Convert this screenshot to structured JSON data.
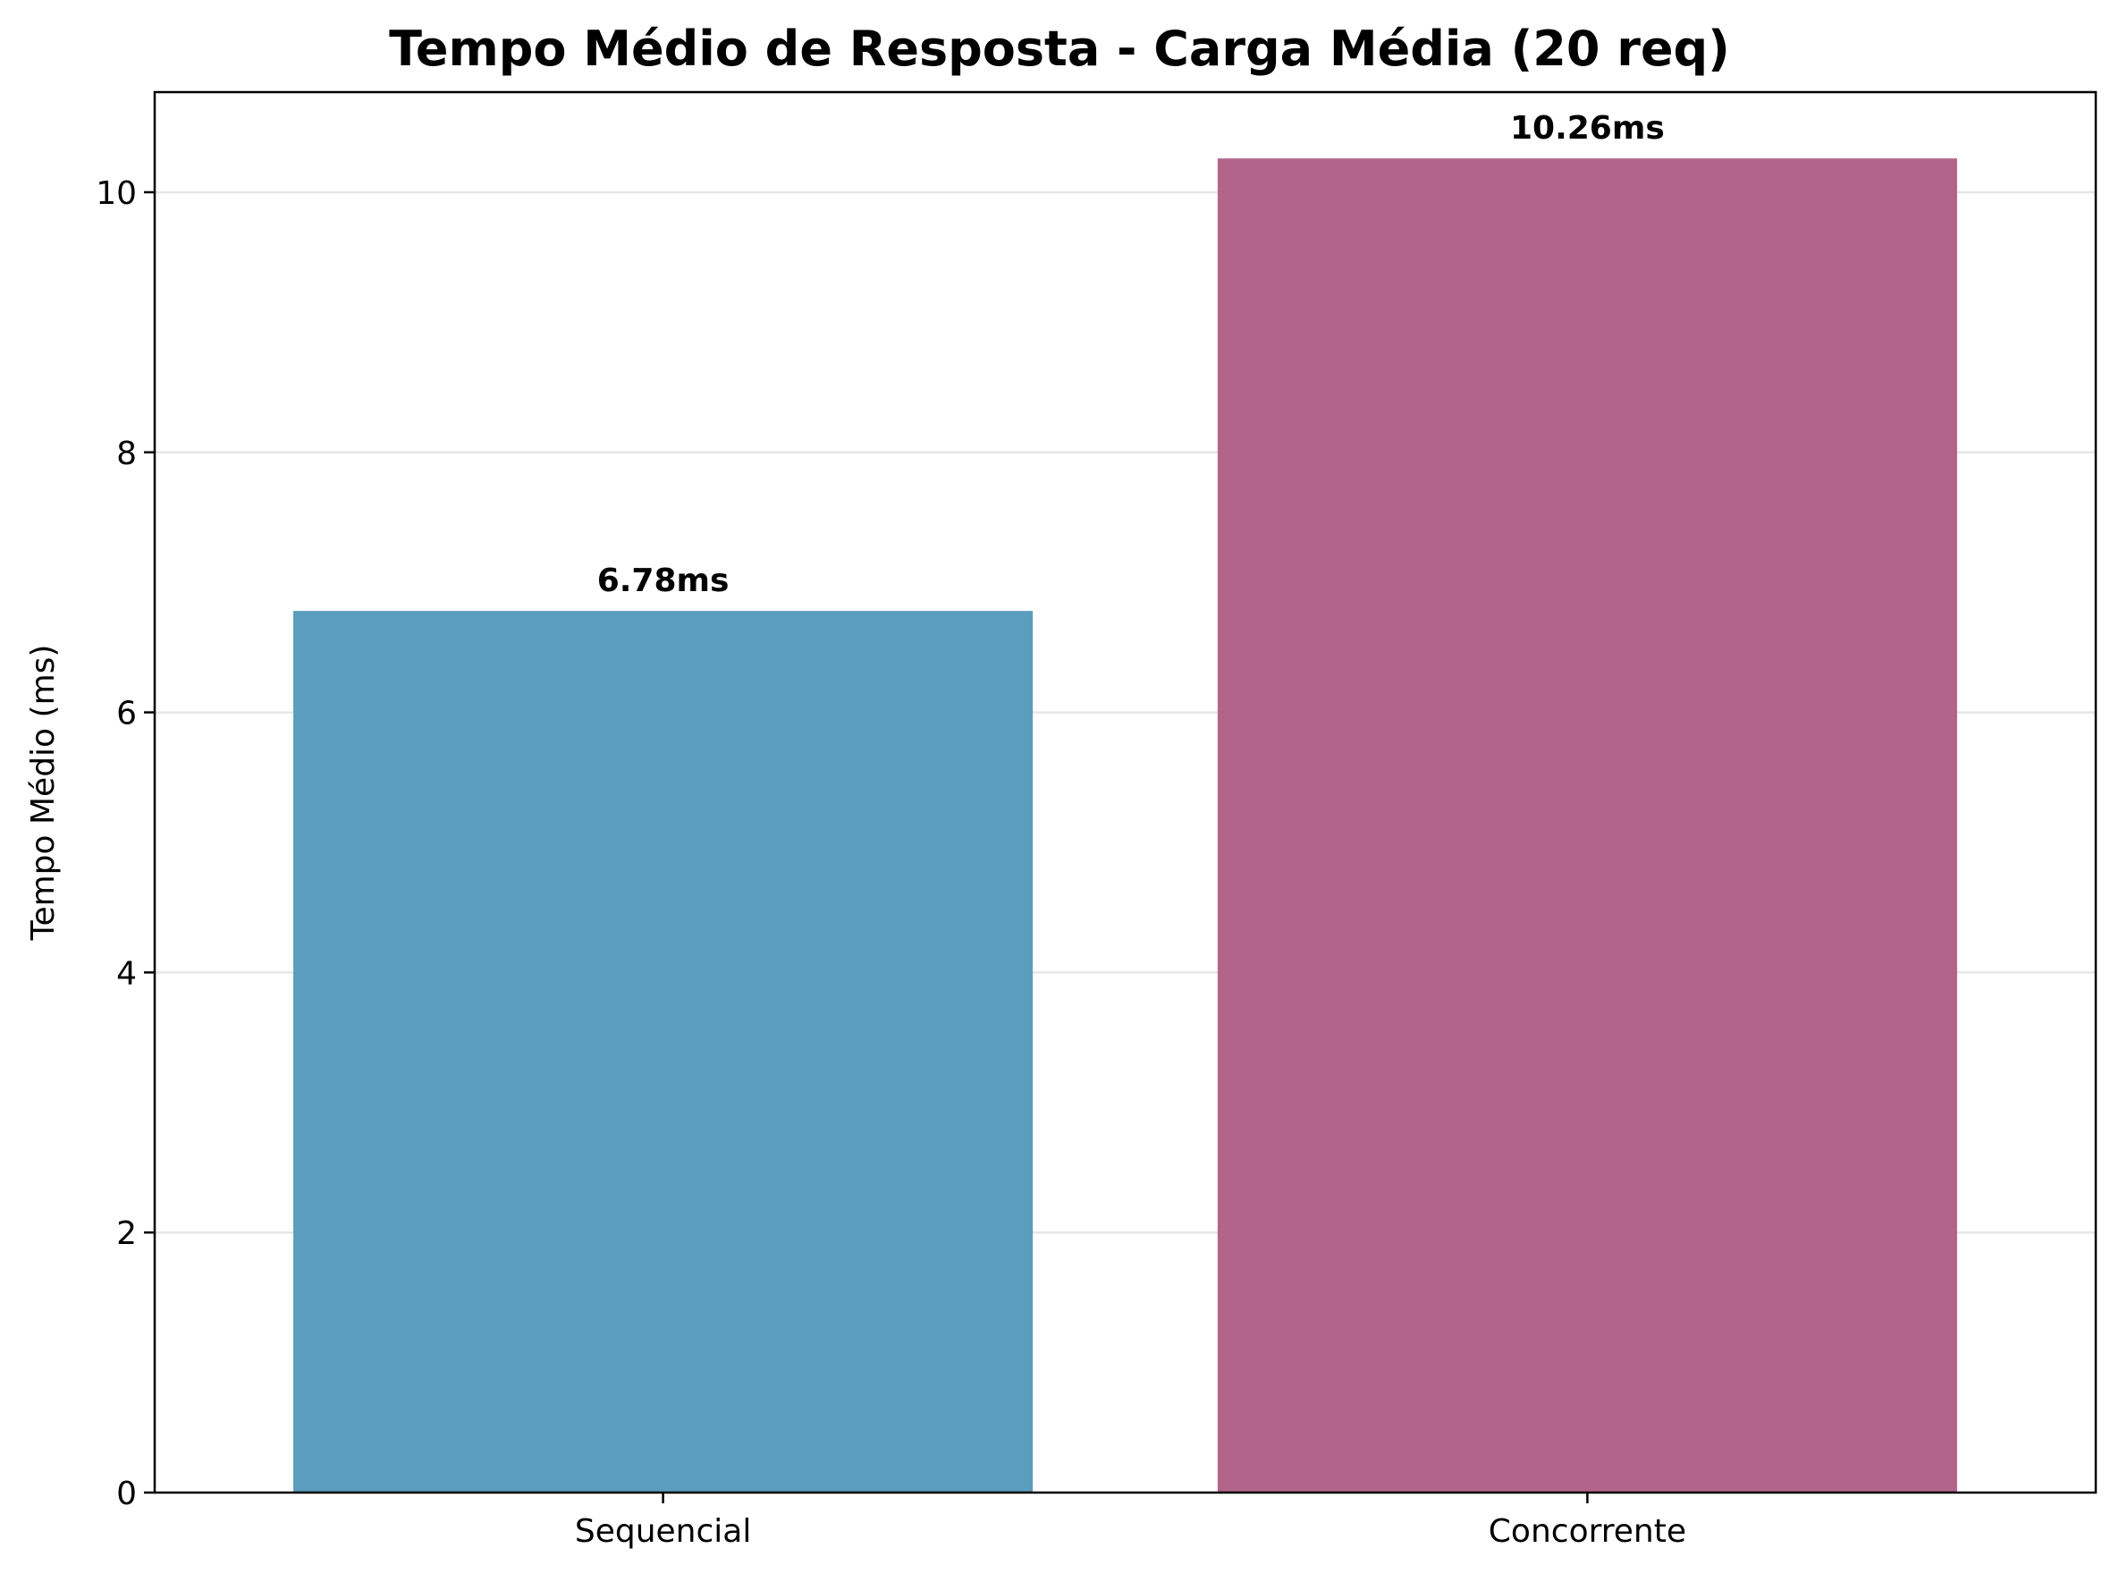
{
  "chart_data": {
    "type": "bar",
    "title": "Tempo Médio de Resposta - Carga Média (20 req)",
    "xlabel": "",
    "ylabel": "Tempo Médio (ms)",
    "categories": [
      "Sequencial",
      "Concorrente"
    ],
    "values": [
      6.78,
      10.26
    ],
    "data_labels": [
      "6.78ms",
      "10.26ms"
    ],
    "bar_colors": [
      "#5a9dbc",
      "#b3648b"
    ],
    "ylim": [
      0,
      10.77
    ],
    "yticks": [
      0,
      2,
      4,
      6,
      8,
      10
    ],
    "grid": "horizontal",
    "legend": "none"
  }
}
